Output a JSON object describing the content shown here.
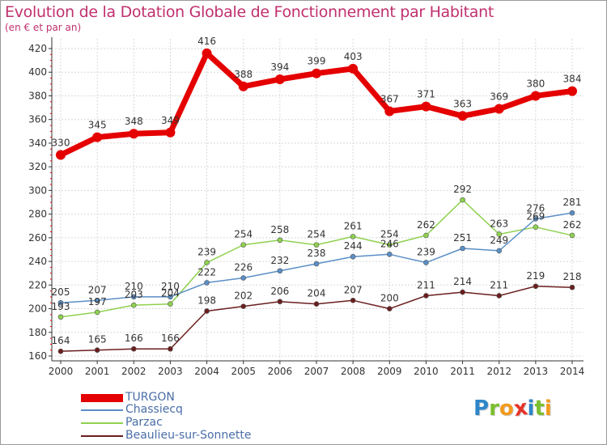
{
  "title": "Evolution de la Dotation Globale de Fonctionnement par Habitant",
  "subtitle": "(en € et par an)",
  "logo": {
    "letters": [
      "P",
      "r",
      "o",
      "x",
      "i",
      "t",
      "i"
    ],
    "colors": [
      "#2e86c8",
      "#7bbf2e",
      "#f39a1e",
      "#e6332a",
      "#2e86c8",
      "#7bbf2e",
      "#f39a1e"
    ]
  },
  "chart_data": {
    "type": "line",
    "title": "Evolution de la Dotation Globale de Fonctionnement par Habitant",
    "subtitle": "(en € et par an)",
    "xlabel": "",
    "ylabel": "",
    "ylim": [
      160,
      420
    ],
    "yticks": [
      160,
      180,
      200,
      220,
      240,
      260,
      280,
      300,
      320,
      340,
      360,
      380,
      400,
      420
    ],
    "categories": [
      "2000",
      "2001",
      "2002",
      "2003",
      "2004",
      "2005",
      "2006",
      "2007",
      "2008",
      "2009",
      "2010",
      "2011",
      "2012",
      "2013",
      "2014"
    ],
    "grid": true,
    "legend_position": "bottom-left",
    "series": [
      {
        "name": "TURGON",
        "color": "#e50000",
        "values": [
          330,
          345,
          348,
          349,
          416,
          388,
          394,
          399,
          403,
          367,
          371,
          363,
          369,
          380,
          384
        ]
      },
      {
        "name": "Chassiecq",
        "color": "#5b8fc7",
        "values": [
          205,
          207,
          210,
          210,
          222,
          226,
          232,
          238,
          244,
          246,
          239,
          251,
          249,
          276,
          281
        ]
      },
      {
        "name": "Parzac",
        "color": "#8fd14f",
        "values": [
          193,
          197,
          203,
          204,
          239,
          254,
          258,
          254,
          261,
          254,
          262,
          292,
          263,
          269,
          262
        ]
      },
      {
        "name": "Beaulieu-sur-Sonnette",
        "color": "#6b1e1e",
        "values": [
          164,
          165,
          166,
          166,
          198,
          202,
          206,
          204,
          207,
          200,
          211,
          214,
          211,
          219,
          218
        ]
      }
    ]
  }
}
